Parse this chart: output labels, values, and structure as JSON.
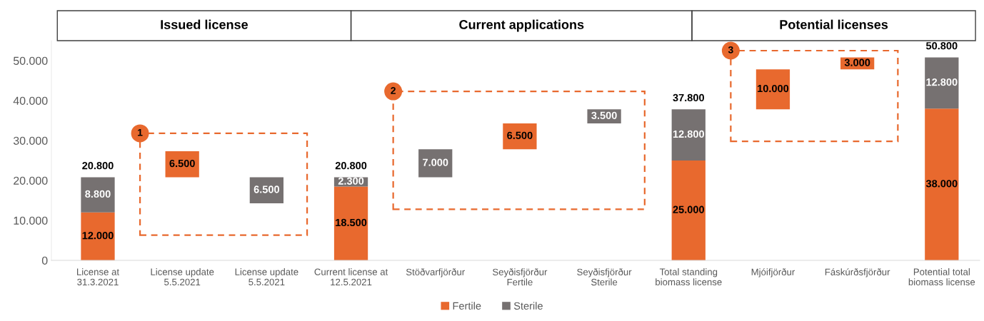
{
  "chart_data": {
    "type": "bar",
    "stacked": true,
    "categories": [
      "License at 31.3.2021",
      "License update 5.5.2021",
      "License update 5.5.2021",
      "Current license at 12.5.2021",
      "Stöðvarfjörður",
      "Seyðisfjörður Fertile",
      "Seyðisfjörður Sterile",
      "Total standing biomass license",
      "Mjóifjörður",
      "Fáskúrðsfjörður",
      "Potential total biomass license"
    ],
    "series": [
      {
        "name": "Fertile",
        "color": "#e8692e",
        "base": [
          0,
          20800,
          null,
          0,
          null,
          27800,
          null,
          0,
          37800,
          47800,
          0
        ],
        "values": [
          12000,
          6500,
          null,
          18500,
          null,
          6500,
          null,
          25000,
          10000,
          3000,
          38000
        ],
        "value_labels": [
          "12.000",
          "6.500",
          null,
          "18.500",
          null,
          "6.500",
          null,
          "25.000",
          "10.000",
          "3.000",
          "38.000"
        ]
      },
      {
        "name": "Sterile",
        "color": "#767171",
        "base": [
          12000,
          null,
          14300,
          18500,
          20800,
          null,
          34300,
          25000,
          null,
          null,
          38000
        ],
        "values": [
          8800,
          null,
          6500,
          2300,
          7000,
          null,
          3500,
          12800,
          null,
          null,
          12800
        ],
        "value_labels": [
          "8.800",
          null,
          "6.500",
          "2.300",
          "7.000",
          null,
          "3.500",
          "12.800",
          null,
          null,
          "12.800"
        ]
      }
    ],
    "totals": [
      "20.800",
      null,
      null,
      "20.800",
      null,
      null,
      null,
      "37.800",
      null,
      null,
      "50.800"
    ],
    "ylim": [
      0,
      55000
    ],
    "yticks": [
      0,
      {
        "value": 10000,
        "label": "10.000"
      },
      {
        "value": 20000,
        "label": "20.000"
      },
      {
        "value": 30000,
        "label": "30.000"
      },
      {
        "value": 40000,
        "label": "40.000"
      },
      {
        "value": 50000,
        "label": "50.000"
      }
    ],
    "annotations": [
      "Issued license",
      "Current applications",
      "Potential licenses",
      "1",
      "2",
      "3"
    ],
    "grid": false,
    "legend": "bottom"
  }
}
